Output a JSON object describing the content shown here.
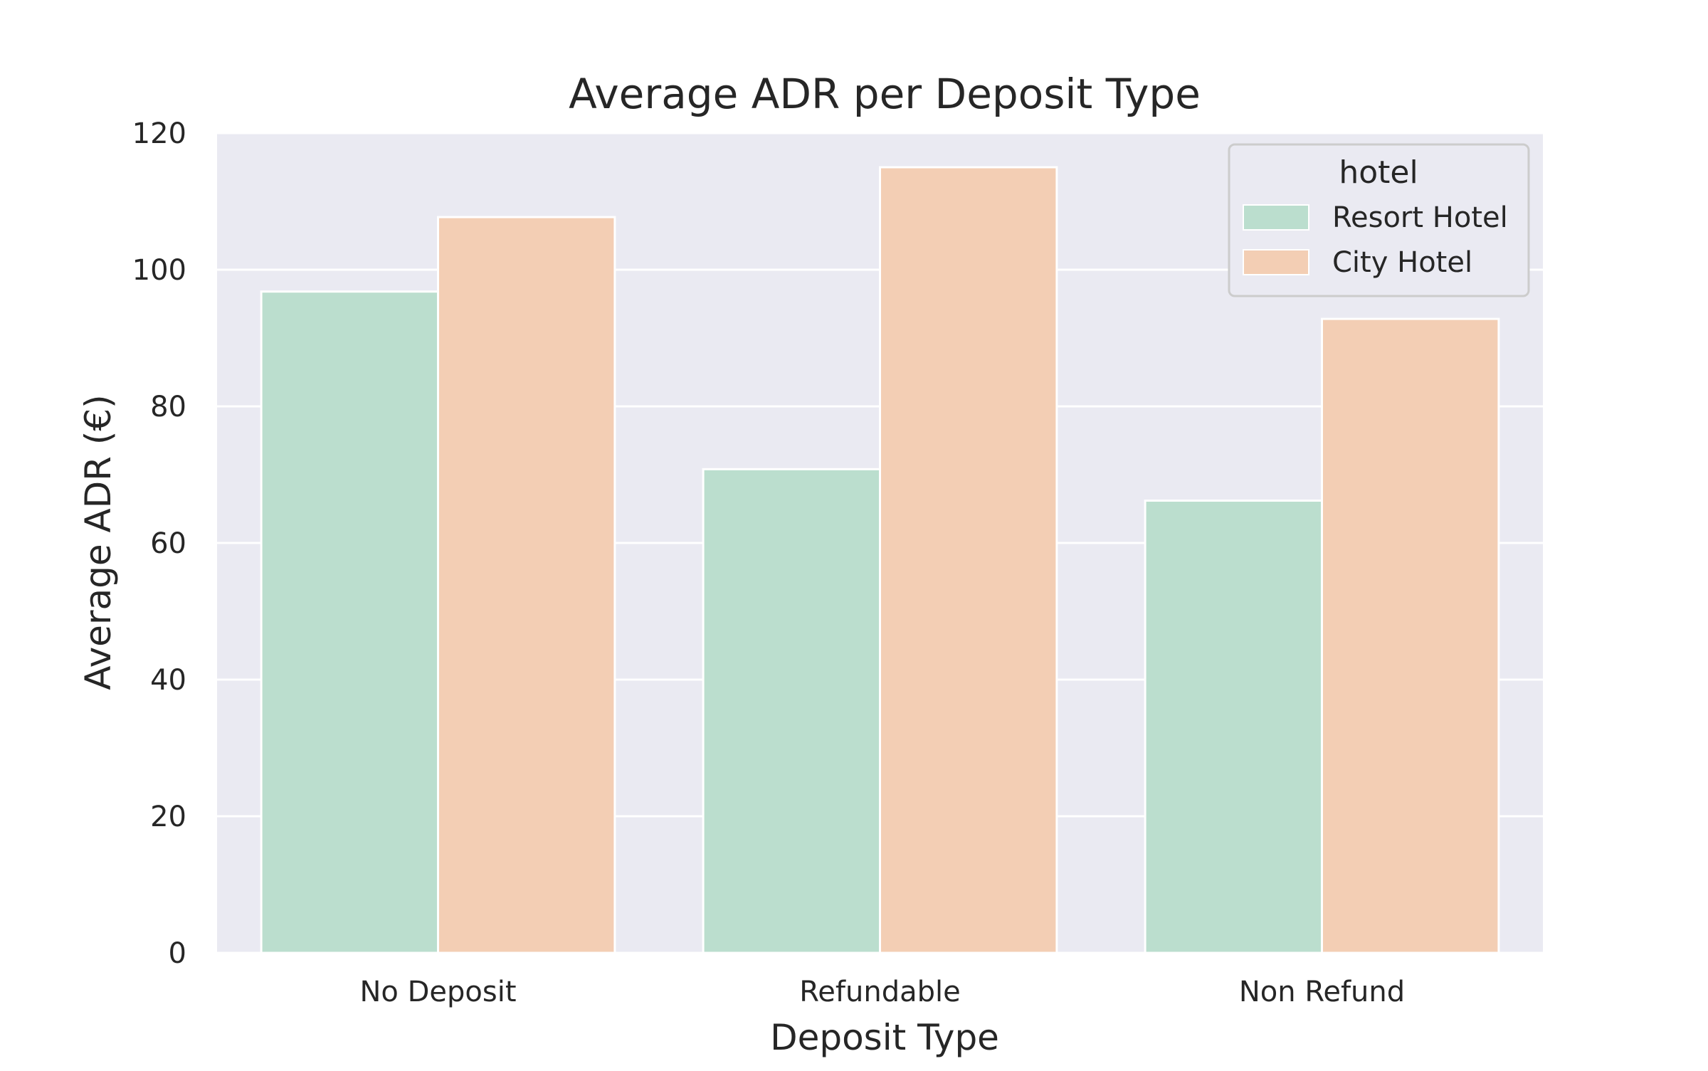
{
  "chart_data": {
    "type": "bar",
    "title": "Average ADR per Deposit Type",
    "xlabel": "Deposit Type",
    "ylabel": "Average ADR (€)",
    "categories": [
      "No Deposit",
      "Refundable",
      "Non Refund"
    ],
    "series": [
      {
        "name": "Resort Hotel",
        "values": [
          96.8,
          70.8,
          66.2
        ],
        "color": "#bbdece"
      },
      {
        "name": "City Hotel",
        "values": [
          107.7,
          115.0,
          92.8
        ],
        "color": "#f3ceb4"
      }
    ],
    "ylim": [
      0,
      120
    ],
    "yticks": [
      "0",
      "20",
      "40",
      "60",
      "80",
      "100",
      "120"
    ],
    "legend": {
      "title": "hotel",
      "placement": "top-right"
    },
    "grid": true,
    "colors": {
      "plot_background": "#eaeaf2",
      "grid": "#ffffff"
    }
  }
}
